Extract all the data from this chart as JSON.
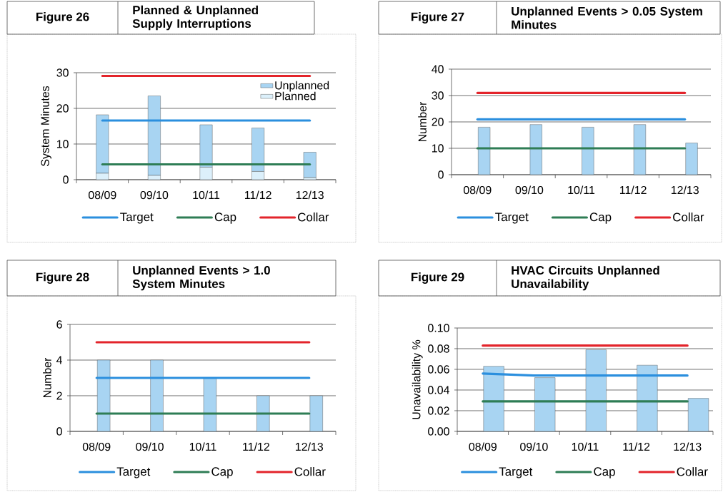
{
  "chart_data": [
    {
      "type": "bar",
      "title": "Figure 26",
      "subtitle": "Planned & Unplanned Supply Interruptions",
      "ylabel": "System Minutes",
      "categories": [
        "08/09",
        "09/10",
        "10/11",
        "11/12",
        "12/13"
      ],
      "stacked": true,
      "ylim": [
        0,
        30
      ],
      "yticks": [
        0,
        10,
        20,
        30
      ],
      "grid": "y",
      "legend": "bottom",
      "series": [
        {
          "name": "Planned",
          "color": "#dcf0fb",
          "values": [
            1.8,
            1.2,
            3.5,
            2.3,
            0.6
          ]
        },
        {
          "name": "Unplanned",
          "color": "#a8d4f2",
          "values": [
            16.4,
            22.3,
            11.9,
            12.2,
            7.1
          ]
        },
        {
          "type": "line",
          "name": "Target",
          "color": "#2b8fde",
          "values": [
            16.6,
            16.6,
            16.6,
            16.6,
            16.6
          ]
        },
        {
          "type": "line",
          "name": "Cap",
          "color": "#2e7d55",
          "values": [
            4.3,
            4.3,
            4.3,
            4.3,
            4.3
          ]
        },
        {
          "type": "line",
          "name": "Collar",
          "color": "#e3242b",
          "values": [
            29.1,
            29.1,
            29.1,
            29.1,
            29.1
          ]
        }
      ]
    },
    {
      "type": "bar",
      "title": "Figure 27",
      "subtitle": "Unplanned Events > 0.05 System Minutes",
      "ylabel": "Number",
      "categories": [
        "08/09",
        "09/10",
        "10/11",
        "11/12",
        "12/13"
      ],
      "ylim": [
        0,
        40
      ],
      "yticks": [
        0,
        10,
        20,
        30,
        40
      ],
      "grid": "y",
      "legend": "bottom",
      "series": [
        {
          "color": "#a8d4f2",
          "values": [
            18,
            19,
            18,
            19,
            12
          ]
        },
        {
          "type": "line",
          "name": "Target",
          "color": "#2b8fde",
          "values": [
            21,
            21,
            21,
            21,
            21
          ]
        },
        {
          "type": "line",
          "name": "Cap",
          "color": "#2e7d55",
          "values": [
            10,
            10,
            10,
            10,
            10
          ]
        },
        {
          "type": "line",
          "name": "Collar",
          "color": "#e3242b",
          "values": [
            31,
            31,
            31,
            31,
            31
          ]
        }
      ]
    },
    {
      "type": "bar",
      "title": "Figure 28",
      "subtitle": "Unplanned Events > 1.0 System Minutes",
      "ylabel": "Number",
      "categories": [
        "08/09",
        "09/10",
        "10/11",
        "11/12",
        "12/13"
      ],
      "ylim": [
        0,
        6
      ],
      "yticks": [
        0,
        2,
        4,
        6
      ],
      "grid": "y",
      "legend": "bottom",
      "series": [
        {
          "color": "#a8d4f2",
          "values": [
            4,
            4,
            3,
            2,
            2
          ]
        },
        {
          "type": "line",
          "name": "Target",
          "color": "#2b8fde",
          "values": [
            3,
            3,
            3,
            3,
            3
          ]
        },
        {
          "type": "line",
          "name": "Cap",
          "color": "#2e7d55",
          "values": [
            1,
            1,
            1,
            1,
            1
          ]
        },
        {
          "type": "line",
          "name": "Collar",
          "color": "#e3242b",
          "values": [
            5,
            5,
            5,
            5,
            5
          ]
        }
      ]
    },
    {
      "type": "bar",
      "title": "Figure 29",
      "subtitle": "HVAC Circuits Unplanned Unavailability",
      "ylabel": "Unavailability %",
      "categories": [
        "08/09",
        "09/10",
        "10/11",
        "11/12",
        "12/13"
      ],
      "ylim": [
        0,
        0.1
      ],
      "yticks": [
        {
          "value": 0,
          "label": "0.00"
        },
        {
          "value": 0.02,
          "label": "0.02"
        },
        {
          "value": 0.04,
          "label": "0.04"
        },
        {
          "value": 0.06,
          "label": "0.06"
        },
        {
          "value": 0.08,
          "label": "0.08"
        },
        {
          "value": 0.1,
          "label": "0.10"
        }
      ],
      "grid": "y",
      "legend": "bottom",
      "series": [
        {
          "color": "#a8d4f2",
          "values": [
            0.063,
            0.052,
            0.079,
            0.064,
            0.032
          ]
        },
        {
          "type": "line",
          "name": "Target",
          "color": "#2b8fde",
          "values": [
            0.056,
            0.054,
            0.054,
            0.054,
            0.054
          ]
        },
        {
          "type": "line",
          "name": "Cap",
          "color": "#2e7d55",
          "values": [
            0.029,
            0.029,
            0.029,
            0.029,
            0.029
          ]
        },
        {
          "type": "line",
          "name": "Collar",
          "color": "#e3242b",
          "values": [
            0.083,
            0.083,
            0.083,
            0.083,
            0.083
          ]
        }
      ]
    }
  ]
}
